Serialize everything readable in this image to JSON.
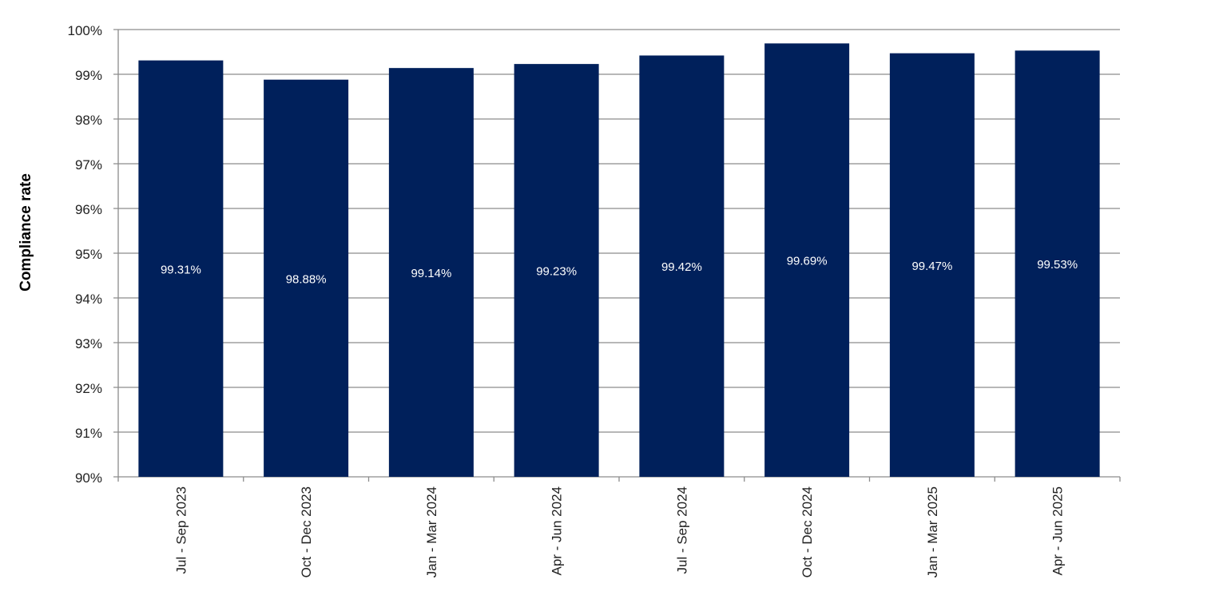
{
  "chart_data": {
    "type": "bar",
    "title": "",
    "xlabel": "",
    "ylabel": "Compliance rate",
    "ylim": [
      90,
      100
    ],
    "yticks": [
      90,
      91,
      92,
      93,
      94,
      95,
      96,
      97,
      98,
      99,
      100
    ],
    "ytick_labels": [
      "90%",
      "91%",
      "92%",
      "93%",
      "94%",
      "95%",
      "96%",
      "97%",
      "98%",
      "99%",
      "100%"
    ],
    "grid": true,
    "legend": "none",
    "bar_color": "#00205B",
    "categories": [
      "Jul - Sep 2023",
      "Oct - Dec 2023",
      "Jan - Mar 2024",
      "Apr - Jun 2024",
      "Jul - Sep 2024",
      "Oct - Dec 2024",
      "Jan - Mar 2025",
      "Apr - Jun 2025"
    ],
    "values": [
      99.31,
      98.88,
      99.14,
      99.23,
      99.42,
      99.69,
      99.47,
      99.53
    ],
    "data_labels": [
      "99.31%",
      "98.88%",
      "99.14%",
      "99.23%",
      "99.42%",
      "99.69%",
      "99.47%",
      "99.53%"
    ]
  }
}
